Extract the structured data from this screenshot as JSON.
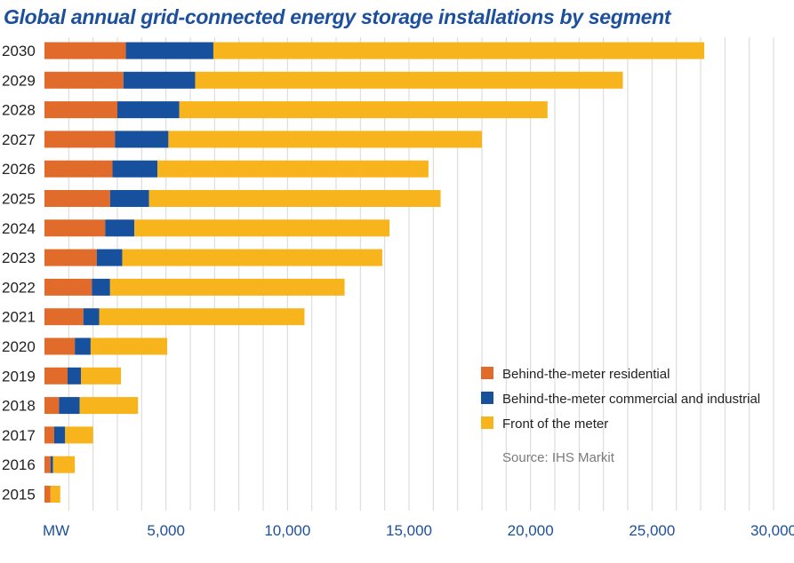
{
  "chart_data": {
    "type": "bar",
    "orientation": "horizontal",
    "stacked": true,
    "title": "Global annual grid-connected energy storage installations by segment",
    "xlabel": "MW",
    "ylabel": "",
    "xlim": [
      0,
      30000
    ],
    "x_ticks": [
      5000,
      10000,
      15000,
      20000,
      25000,
      30000
    ],
    "x_tick_labels": [
      "5,000",
      "10,000",
      "15,000",
      "20,000",
      "25,000",
      "30,000"
    ],
    "categories": [
      "2030",
      "2029",
      "2028",
      "2027",
      "2026",
      "2025",
      "2024",
      "2023",
      "2022",
      "2021",
      "2020",
      "2019",
      "2018",
      "2017",
      "2016",
      "2015"
    ],
    "series": [
      {
        "name": "Behind-the-meter residential",
        "color": "#e06b2b",
        "values": [
          3350,
          3250,
          3000,
          2900,
          2800,
          2700,
          2500,
          2150,
          1950,
          1600,
          1250,
          950,
          600,
          400,
          250,
          250
        ]
      },
      {
        "name": "Behind-the-meter commercial and industrial",
        "color": "#17509c",
        "values": [
          3600,
          2950,
          2550,
          2200,
          1850,
          1600,
          1200,
          1050,
          750,
          650,
          650,
          550,
          850,
          450,
          100,
          0
        ]
      },
      {
        "name": "Front of the meter",
        "color": "#f8b41c",
        "values": [
          20200,
          17600,
          15150,
          12900,
          11150,
          12000,
          10500,
          10700,
          9650,
          8450,
          3150,
          1650,
          2400,
          1150,
          900,
          400
        ]
      }
    ],
    "grid": true,
    "legend_position": "bottom-right",
    "source": "Source: IHS Markit"
  }
}
